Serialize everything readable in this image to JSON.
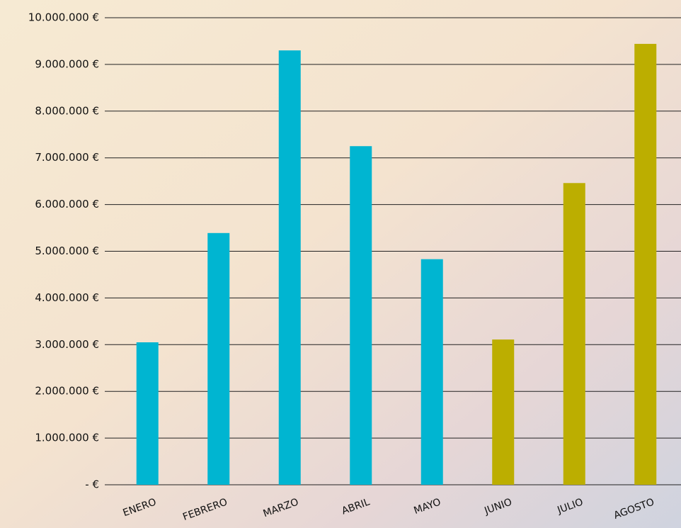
{
  "chart_data": {
    "type": "bar",
    "categories": [
      "ENERO",
      "FEBRERO",
      "MARZO",
      "ABRIL",
      "MAYO",
      "JUNIO",
      "JULIO",
      "AGOSTO"
    ],
    "values": [
      3050000,
      5390000,
      9300000,
      7250000,
      4830000,
      3110000,
      6460000,
      9440000
    ],
    "colors": [
      "#00b5d1",
      "#00b5d1",
      "#00b5d1",
      "#00b5d1",
      "#00b5d1",
      "#bcae00",
      "#bcae00",
      "#bcae00"
    ],
    "ylim": [
      0,
      10000000
    ],
    "yticks": [
      {
        "value": 0,
        "label": "- €"
      },
      {
        "value": 1000000,
        "label": "1.000.000 €"
      },
      {
        "value": 2000000,
        "label": "2.000.000 €"
      },
      {
        "value": 3000000,
        "label": "3.000.000 €"
      },
      {
        "value": 4000000,
        "label": "4.000.000 €"
      },
      {
        "value": 5000000,
        "label": "5.000.000 €"
      },
      {
        "value": 6000000,
        "label": "6.000.000 €"
      },
      {
        "value": 7000000,
        "label": "7.000.000 €"
      },
      {
        "value": 8000000,
        "label": "8.000.000 €"
      },
      {
        "value": 9000000,
        "label": "9.000.000 €"
      },
      {
        "value": 10000000,
        "label": "10.000.000 €"
      }
    ],
    "grid": true
  }
}
